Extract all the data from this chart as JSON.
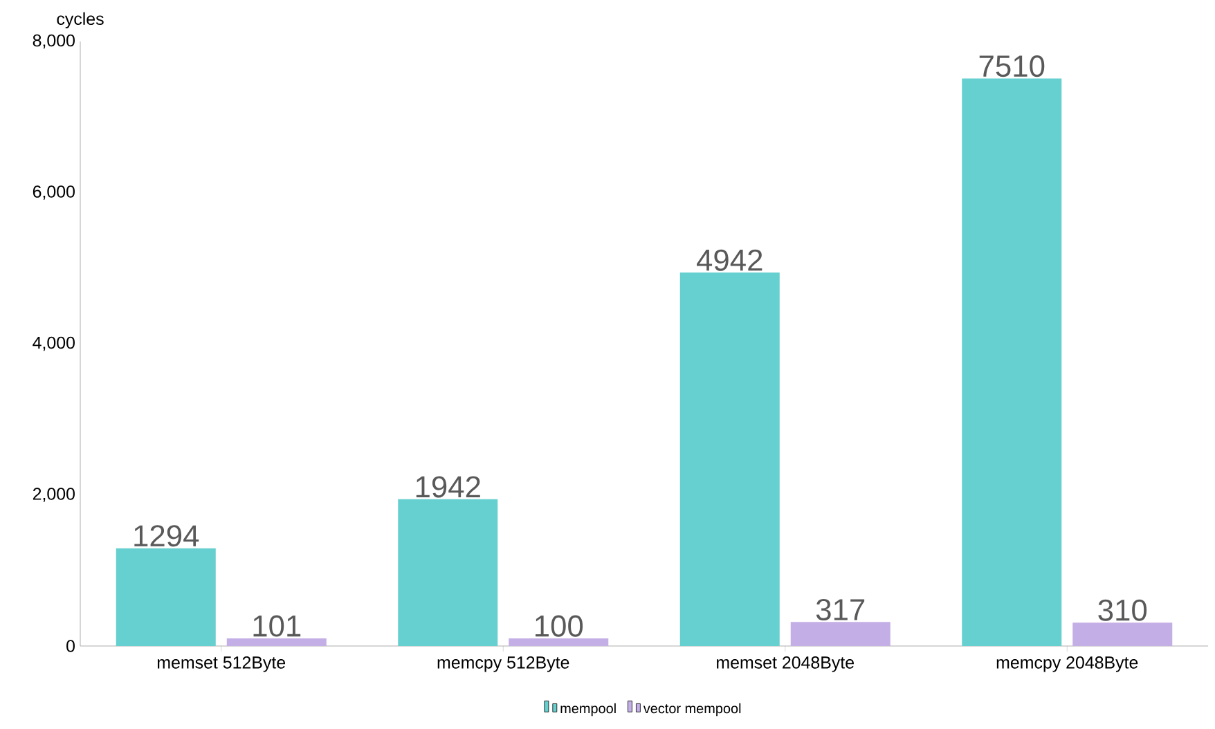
{
  "chart_data": {
    "type": "bar",
    "ylabel": "cycles",
    "categories": [
      "memset 512Byte",
      "memcpy 512Byte",
      "memset 2048Byte",
      "memcpy 2048Byte"
    ],
    "series": [
      {
        "name": "mempool",
        "color": "#66cfcf",
        "values": [
          1294,
          1942,
          4942,
          7510
        ]
      },
      {
        "name": "vector mempool",
        "color": "#c3aee6",
        "values": [
          101,
          100,
          317,
          310
        ]
      }
    ],
    "ylim": [
      0,
      8000
    ],
    "yticks": [
      {
        "value": 0,
        "label": "0"
      },
      {
        "value": 2000,
        "label": "2,000"
      },
      {
        "value": 4000,
        "label": "4,000"
      },
      {
        "value": 6000,
        "label": "6,000"
      },
      {
        "value": 8000,
        "label": "8,000"
      }
    ],
    "data_labels": true,
    "grid": false,
    "legend": "bottom"
  }
}
